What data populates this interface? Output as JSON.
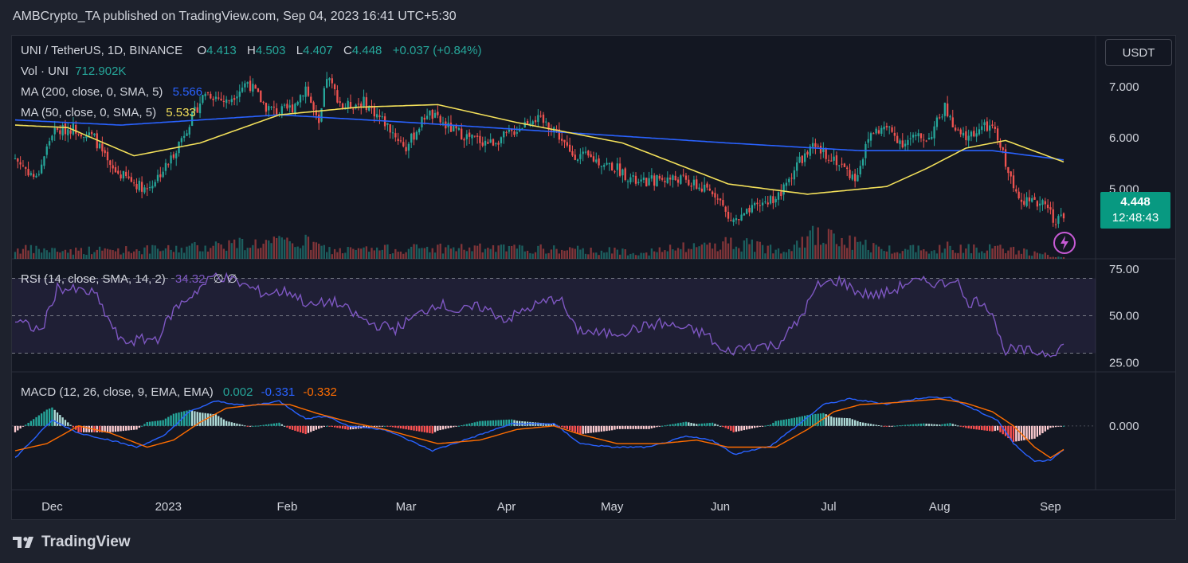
{
  "header": {
    "text": "AMBCrypto_TA published on TradingView.com, Sep 04, 2023 16:41 UTC+5:30"
  },
  "symbol": {
    "name": "UNI / TetherUS, 1D, BINANCE",
    "o_label": "O",
    "o": "4.413",
    "h_label": "H",
    "h": "4.503",
    "l_label": "L",
    "l": "4.407",
    "c_label": "C",
    "c": "4.448",
    "change": "+0.037 (+0.84%)"
  },
  "vol": {
    "label": "Vol · UNI",
    "value": "712.902K"
  },
  "ma200": {
    "label": "MA (200, close, 0, SMA, 5)",
    "value": "5.566"
  },
  "ma50": {
    "label": "MA (50, close, 0, SMA, 5)",
    "value": "5.533"
  },
  "rsi": {
    "label": "RSI (14, close, SMA, 14, 2)",
    "value": "34.32",
    "extra": "∅ ∅"
  },
  "macd": {
    "label": "MACD (12, 26, close, 9, EMA, EMA)",
    "hist": "0.002",
    "macd": "-0.331",
    "signal": "-0.332"
  },
  "currency": "USDT",
  "price_tag": {
    "price": "4.448",
    "countdown": "12:48:43"
  },
  "footer": {
    "brand": "TradingView"
  },
  "colors": {
    "up": "#26a69a",
    "down": "#ef5350",
    "ma200": "#2962ff",
    "ma50": "#f3e05a",
    "rsi": "#7e57c2",
    "macd": "#2962ff",
    "signal": "#ff6d00",
    "bg": "#131722"
  },
  "chart_data": {
    "type": "candlestick",
    "x_tick_labels": [
      "Dec",
      "2023",
      "Feb",
      "Mar",
      "Apr",
      "May",
      "Jun",
      "Jul",
      "Aug",
      "Sep"
    ],
    "price_axis": {
      "ticks": [
        "7.000",
        "6.000",
        "5.000"
      ],
      "ylim": [
        3.7,
        7.9
      ]
    },
    "rsi_axis": {
      "ticks": [
        "75.00",
        "50.00",
        "25.00"
      ],
      "ylim": [
        20,
        80
      ],
      "bands": [
        70,
        30
      ]
    },
    "macd_axis": {
      "ticks": [
        "0.000"
      ],
      "ylim": [
        -0.9,
        0.75
      ]
    },
    "close_series": {
      "anchors": [
        [
          0,
          5.6
        ],
        [
          8,
          5.2
        ],
        [
          14,
          6.1
        ],
        [
          22,
          6.2
        ],
        [
          30,
          6.0
        ],
        [
          36,
          5.4
        ],
        [
          46,
          5.1
        ],
        [
          50,
          5.0
        ],
        [
          58,
          5.5
        ],
        [
          66,
          6.3
        ],
        [
          72,
          6.9
        ],
        [
          80,
          6.7
        ],
        [
          88,
          7.1
        ],
        [
          95,
          6.6
        ],
        [
          100,
          6.5
        ],
        [
          105,
          6.6
        ],
        [
          110,
          7.0
        ],
        [
          115,
          6.2
        ],
        [
          118,
          7.2
        ],
        [
          124,
          6.6
        ],
        [
          132,
          6.7
        ],
        [
          140,
          6.3
        ],
        [
          148,
          5.8
        ],
        [
          156,
          6.5
        ],
        [
          164,
          6.2
        ],
        [
          172,
          6.0
        ],
        [
          180,
          5.9
        ],
        [
          188,
          6.1
        ],
        [
          196,
          6.4
        ],
        [
          204,
          6.2
        ],
        [
          210,
          5.7
        ],
        [
          218,
          5.6
        ],
        [
          228,
          5.4
        ],
        [
          236,
          5.1
        ],
        [
          244,
          5.2
        ],
        [
          252,
          5.2
        ],
        [
          260,
          5.0
        ],
        [
          266,
          4.9
        ],
        [
          270,
          4.4
        ],
        [
          274,
          4.4
        ],
        [
          282,
          4.7
        ],
        [
          290,
          4.9
        ],
        [
          296,
          5.5
        ],
        [
          302,
          5.8
        ],
        [
          310,
          5.6
        ],
        [
          318,
          5.2
        ],
        [
          324,
          6.1
        ],
        [
          330,
          6.2
        ],
        [
          336,
          5.9
        ],
        [
          340,
          6.0
        ],
        [
          346,
          6.0
        ],
        [
          352,
          6.6
        ],
        [
          356,
          6.1
        ],
        [
          360,
          6.0
        ],
        [
          366,
          6.2
        ],
        [
          370,
          6.2
        ],
        [
          374,
          5.7
        ],
        [
          378,
          5.0
        ],
        [
          382,
          4.8
        ],
        [
          386,
          4.7
        ],
        [
          390,
          4.8
        ],
        [
          393,
          4.4
        ],
        [
          397,
          4.448
        ]
      ]
    },
    "ma200_series": [
      [
        0,
        6.35
      ],
      [
        40,
        6.25
      ],
      [
        100,
        6.45
      ],
      [
        150,
        6.3
      ],
      [
        210,
        6.1
      ],
      [
        270,
        5.9
      ],
      [
        320,
        5.75
      ],
      [
        370,
        5.75
      ],
      [
        397,
        5.57
      ]
    ],
    "ma50_series": [
      [
        0,
        6.25
      ],
      [
        20,
        6.2
      ],
      [
        45,
        5.65
      ],
      [
        70,
        5.9
      ],
      [
        100,
        6.45
      ],
      [
        130,
        6.6
      ],
      [
        160,
        6.65
      ],
      [
        190,
        6.3
      ],
      [
        230,
        5.9
      ],
      [
        270,
        5.1
      ],
      [
        300,
        4.9
      ],
      [
        330,
        5.05
      ],
      [
        345,
        5.4
      ],
      [
        360,
        5.8
      ],
      [
        375,
        5.95
      ],
      [
        397,
        5.53
      ]
    ],
    "rsi_series": [
      [
        0,
        47
      ],
      [
        10,
        42
      ],
      [
        16,
        65
      ],
      [
        30,
        62
      ],
      [
        40,
        36
      ],
      [
        54,
        38
      ],
      [
        60,
        53
      ],
      [
        70,
        65
      ],
      [
        76,
        72
      ],
      [
        84,
        68
      ],
      [
        94,
        62
      ],
      [
        104,
        63
      ],
      [
        112,
        55
      ],
      [
        120,
        58
      ],
      [
        134,
        46
      ],
      [
        144,
        43
      ],
      [
        152,
        50
      ],
      [
        160,
        57
      ],
      [
        168,
        52
      ],
      [
        176,
        55
      ],
      [
        186,
        48
      ],
      [
        196,
        55
      ],
      [
        206,
        60
      ],
      [
        212,
        43
      ],
      [
        222,
        40
      ],
      [
        232,
        42
      ],
      [
        244,
        46
      ],
      [
        254,
        43
      ],
      [
        262,
        40
      ],
      [
        268,
        30
      ],
      [
        278,
        34
      ],
      [
        288,
        34
      ],
      [
        296,
        46
      ],
      [
        304,
        66
      ],
      [
        312,
        69
      ],
      [
        320,
        62
      ],
      [
        326,
        61
      ],
      [
        332,
        63
      ],
      [
        338,
        68
      ],
      [
        346,
        68
      ],
      [
        352,
        67
      ],
      [
        356,
        71
      ],
      [
        360,
        57
      ],
      [
        366,
        58
      ],
      [
        370,
        52
      ],
      [
        374,
        32
      ],
      [
        384,
        31
      ],
      [
        392,
        30
      ],
      [
        397,
        34.32
      ]
    ],
    "macd_series": [
      [
        0,
        -0.45
      ],
      [
        14,
        0.08
      ],
      [
        24,
        -0.1
      ],
      [
        36,
        -0.2
      ],
      [
        46,
        -0.3
      ],
      [
        56,
        -0.15
      ],
      [
        66,
        0.2
      ],
      [
        76,
        0.35
      ],
      [
        88,
        0.28
      ],
      [
        100,
        0.35
      ],
      [
        110,
        0.1
      ],
      [
        118,
        0.14
      ],
      [
        126,
        0.0
      ],
      [
        140,
        -0.05
      ],
      [
        158,
        -0.35
      ],
      [
        174,
        -0.15
      ],
      [
        188,
        0.03
      ],
      [
        204,
        0.03
      ],
      [
        214,
        -0.25
      ],
      [
        226,
        -0.3
      ],
      [
        240,
        -0.3
      ],
      [
        254,
        -0.15
      ],
      [
        264,
        -0.2
      ],
      [
        272,
        -0.4
      ],
      [
        286,
        -0.28
      ],
      [
        296,
        0.0
      ],
      [
        306,
        0.3
      ],
      [
        316,
        0.38
      ],
      [
        330,
        0.31
      ],
      [
        344,
        0.4
      ],
      [
        354,
        0.4
      ],
      [
        362,
        0.25
      ],
      [
        372,
        0.08
      ],
      [
        378,
        -0.25
      ],
      [
        386,
        -0.5
      ],
      [
        392,
        -0.48
      ],
      [
        397,
        -0.331
      ]
    ],
    "signal_series": [
      [
        0,
        -0.35
      ],
      [
        12,
        -0.25
      ],
      [
        24,
        0.0
      ],
      [
        36,
        -0.1
      ],
      [
        50,
        -0.3
      ],
      [
        60,
        -0.2
      ],
      [
        70,
        0.05
      ],
      [
        80,
        0.25
      ],
      [
        92,
        0.3
      ],
      [
        104,
        0.3
      ],
      [
        114,
        0.18
      ],
      [
        126,
        0.06
      ],
      [
        140,
        -0.05
      ],
      [
        160,
        -0.25
      ],
      [
        176,
        -0.2
      ],
      [
        190,
        -0.05
      ],
      [
        204,
        0.0
      ],
      [
        214,
        -0.12
      ],
      [
        228,
        -0.25
      ],
      [
        244,
        -0.25
      ],
      [
        258,
        -0.2
      ],
      [
        270,
        -0.3
      ],
      [
        288,
        -0.3
      ],
      [
        300,
        -0.05
      ],
      [
        310,
        0.2
      ],
      [
        320,
        0.3
      ],
      [
        334,
        0.33
      ],
      [
        350,
        0.38
      ],
      [
        360,
        0.32
      ],
      [
        370,
        0.2
      ],
      [
        378,
        0.0
      ],
      [
        386,
        -0.3
      ],
      [
        392,
        -0.45
      ],
      [
        397,
        -0.332
      ]
    ],
    "volume_series": [
      [
        0,
        0.35
      ],
      [
        20,
        0.3
      ],
      [
        60,
        0.35
      ],
      [
        80,
        0.55
      ],
      [
        110,
        0.6
      ],
      [
        120,
        0.3
      ],
      [
        160,
        0.4
      ],
      [
        200,
        0.35
      ],
      [
        240,
        0.25
      ],
      [
        270,
        0.6
      ],
      [
        290,
        0.35
      ],
      [
        300,
        0.9
      ],
      [
        330,
        0.35
      ],
      [
        360,
        0.45
      ],
      [
        380,
        0.3
      ],
      [
        397,
        0.05
      ]
    ]
  }
}
